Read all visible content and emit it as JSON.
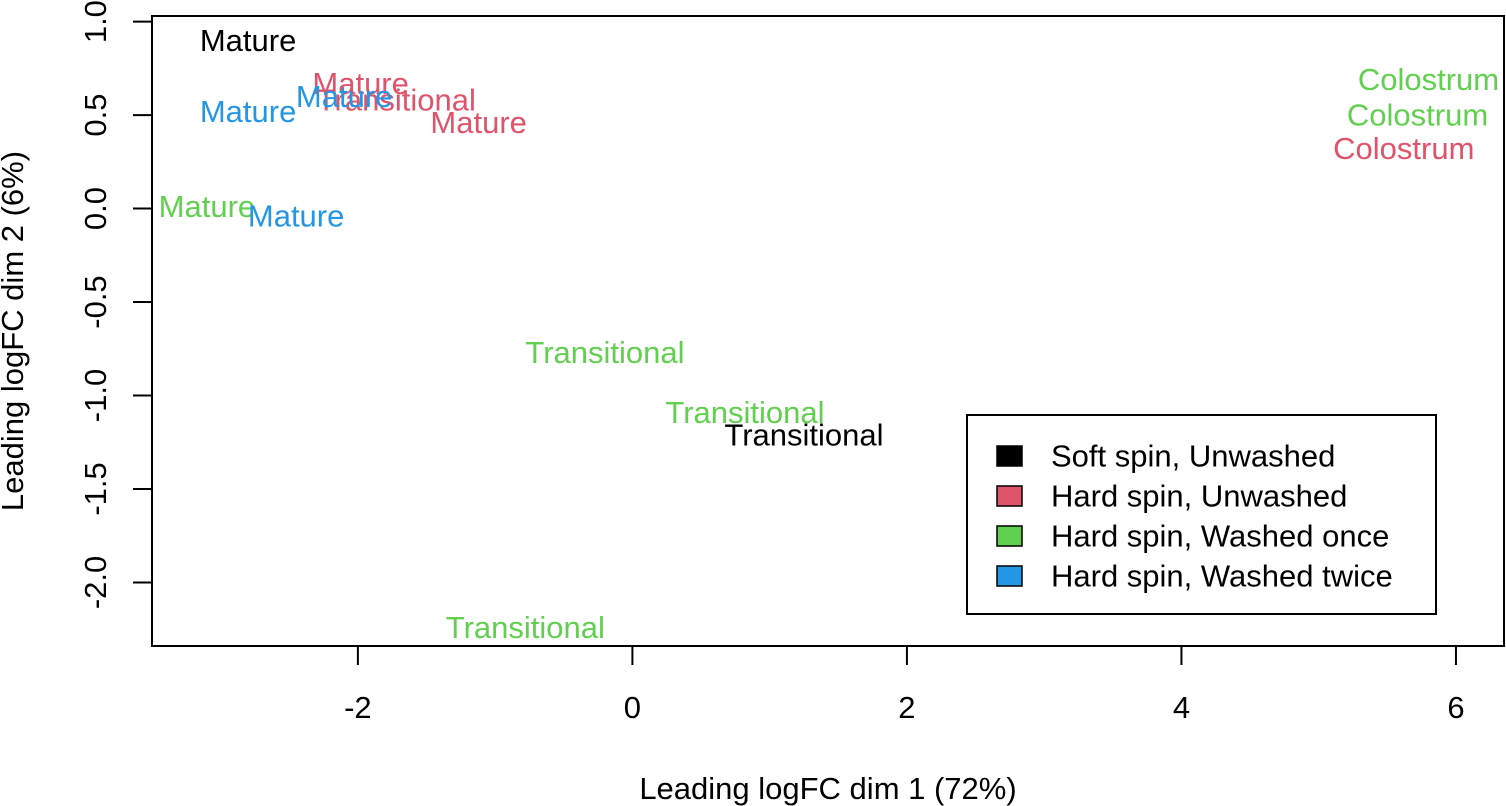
{
  "chart_data": {
    "type": "scatter",
    "marker": "text-label",
    "xlabel": "Leading logFC dim 1 (72%)",
    "ylabel": "Leading logFC dim 2 (6%)",
    "xlim": [
      -3.5,
      6.35
    ],
    "ylim": [
      -2.34,
      1.03
    ],
    "x_ticks": [
      -2,
      0,
      2,
      4,
      6
    ],
    "x_tick_labels": [
      "-2",
      "0",
      "2",
      "4",
      "6"
    ],
    "y_ticks": [
      -2.0,
      -1.5,
      -1.0,
      -0.5,
      0.0,
      0.5,
      1.0
    ],
    "y_tick_labels": [
      "-2.0",
      "-1.5",
      "-1.0",
      "-0.5",
      "0.0",
      "0.5",
      "1.0"
    ],
    "grid": false,
    "legend_position": "bottom-right",
    "series": [
      {
        "name": "Soft spin, Unwashed",
        "color": "#000000",
        "points": [
          {
            "x": -2.8,
            "y": 0.9,
            "label": "Mature"
          },
          {
            "x": 1.25,
            "y": -1.21,
            "label": "Transitional"
          }
        ]
      },
      {
        "name": "Hard spin, Unwashed",
        "color": "#DF536B",
        "points": [
          {
            "x": -1.98,
            "y": 0.67,
            "label": "Mature"
          },
          {
            "x": -1.72,
            "y": 0.58,
            "label": "Transitional"
          },
          {
            "x": -1.12,
            "y": 0.46,
            "label": "Mature"
          },
          {
            "x": 5.62,
            "y": 0.32,
            "label": "Colostrum"
          }
        ]
      },
      {
        "name": "Hard spin, Washed once",
        "color": "#61D04F",
        "points": [
          {
            "x": -3.1,
            "y": 0.01,
            "label": "Mature"
          },
          {
            "x": -0.2,
            "y": -0.77,
            "label": "Transitional"
          },
          {
            "x": 0.82,
            "y": -1.09,
            "label": "Transitional"
          },
          {
            "x": -0.78,
            "y": -2.24,
            "label": "Transitional"
          },
          {
            "x": 5.8,
            "y": 0.69,
            "label": "Colostrum"
          },
          {
            "x": 5.72,
            "y": 0.5,
            "label": "Colostrum"
          }
        ]
      },
      {
        "name": "Hard spin, Washed twice",
        "color": "#2297E6",
        "points": [
          {
            "x": -2.8,
            "y": 0.52,
            "label": "Mature"
          },
          {
            "x": -2.1,
            "y": 0.6,
            "label": "Mature"
          },
          {
            "x": -2.45,
            "y": -0.04,
            "label": "Mature"
          }
        ]
      }
    ]
  }
}
